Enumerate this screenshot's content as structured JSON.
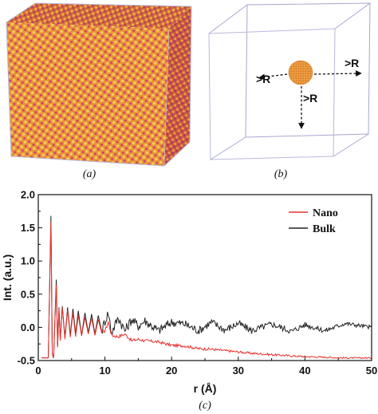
{
  "panels": {
    "a": {
      "caption": "(a)"
    },
    "b": {
      "caption": "(b)",
      "radius_labels": [
        ">R",
        ">R",
        ">R"
      ]
    },
    "c": {
      "caption": "(c)"
    }
  },
  "chart_data": {
    "type": "line",
    "title": "",
    "xlabel": "r (Å)",
    "ylabel": "Int. (a.u.)",
    "xlim": [
      0,
      50
    ],
    "ylim": [
      -0.5,
      2.0
    ],
    "xticks": [
      0,
      10,
      20,
      30,
      40,
      50
    ],
    "yticks": [
      -0.5,
      0.0,
      0.5,
      1.0,
      1.5,
      2.0
    ],
    "xtick_labels": [
      "0",
      "10",
      "20",
      "30",
      "40",
      "50"
    ],
    "ytick_labels": [
      "-0.5",
      "0.0",
      "0.5",
      "1.0",
      "1.5",
      "2.0"
    ],
    "grid": false,
    "legend_position": "top-right",
    "series": [
      {
        "name": "Nano",
        "color": "#e8322b",
        "x": [
          0.5,
          1.5,
          1.9,
          2.1,
          2.3,
          2.5,
          2.7,
          2.9,
          3.1,
          3.3,
          3.6,
          4.0,
          4.4,
          4.8,
          5.2,
          5.6,
          6.0,
          6.5,
          7.0,
          7.5,
          8.0,
          8.5,
          9.0,
          9.5,
          10.0,
          10.5,
          11.0,
          12.0,
          13.0,
          14.0,
          15.0,
          16.0,
          18.0,
          20.0,
          22.0,
          24.0,
          26.0,
          28.0,
          30.0,
          32.0,
          35.0,
          38.0,
          40.0,
          43.0,
          46.0,
          50.0
        ],
        "y": [
          -0.46,
          -0.46,
          1.6,
          -0.4,
          -0.46,
          0.1,
          0.64,
          -0.3,
          0.28,
          -0.2,
          0.3,
          -0.18,
          0.26,
          -0.15,
          0.22,
          -0.14,
          0.18,
          -0.13,
          0.15,
          -0.1,
          0.14,
          -0.12,
          0.12,
          -0.08,
          -0.05,
          0.08,
          -0.12,
          -0.14,
          -0.1,
          -0.2,
          -0.18,
          -0.2,
          -0.22,
          -0.27,
          -0.28,
          -0.32,
          -0.33,
          -0.35,
          -0.37,
          -0.39,
          -0.41,
          -0.43,
          -0.44,
          -0.45,
          -0.46,
          -0.46
        ]
      },
      {
        "name": "Bulk",
        "color": "#222222",
        "x": [
          0.5,
          1.5,
          1.9,
          2.1,
          2.3,
          2.5,
          2.7,
          2.9,
          3.1,
          3.3,
          3.6,
          4.0,
          4.4,
          4.8,
          5.2,
          5.6,
          6.0,
          6.5,
          7.0,
          7.5,
          8.0,
          8.5,
          9.0,
          9.5,
          10.0,
          10.5,
          11.0,
          12.0,
          13.0,
          14.0,
          15.0,
          16.0,
          18.0,
          20.0,
          22.0,
          24.0,
          26.0,
          28.0,
          30.0,
          32.0,
          35.0,
          38.0,
          40.0,
          43.0,
          46.0,
          50.0
        ],
        "y": [
          -0.46,
          -0.46,
          1.68,
          -0.4,
          -0.46,
          0.12,
          0.72,
          -0.28,
          0.3,
          -0.18,
          0.32,
          -0.15,
          0.3,
          -0.12,
          0.28,
          -0.1,
          0.25,
          -0.12,
          0.22,
          -0.08,
          0.2,
          -0.1,
          0.18,
          -0.06,
          0.1,
          0.22,
          -0.08,
          0.15,
          -0.05,
          0.12,
          0.02,
          0.1,
          -0.05,
          0.08,
          0.05,
          -0.05,
          0.08,
          -0.04,
          0.06,
          -0.05,
          0.05,
          -0.06,
          0.04,
          -0.05,
          0.06,
          0.0
        ]
      }
    ]
  }
}
